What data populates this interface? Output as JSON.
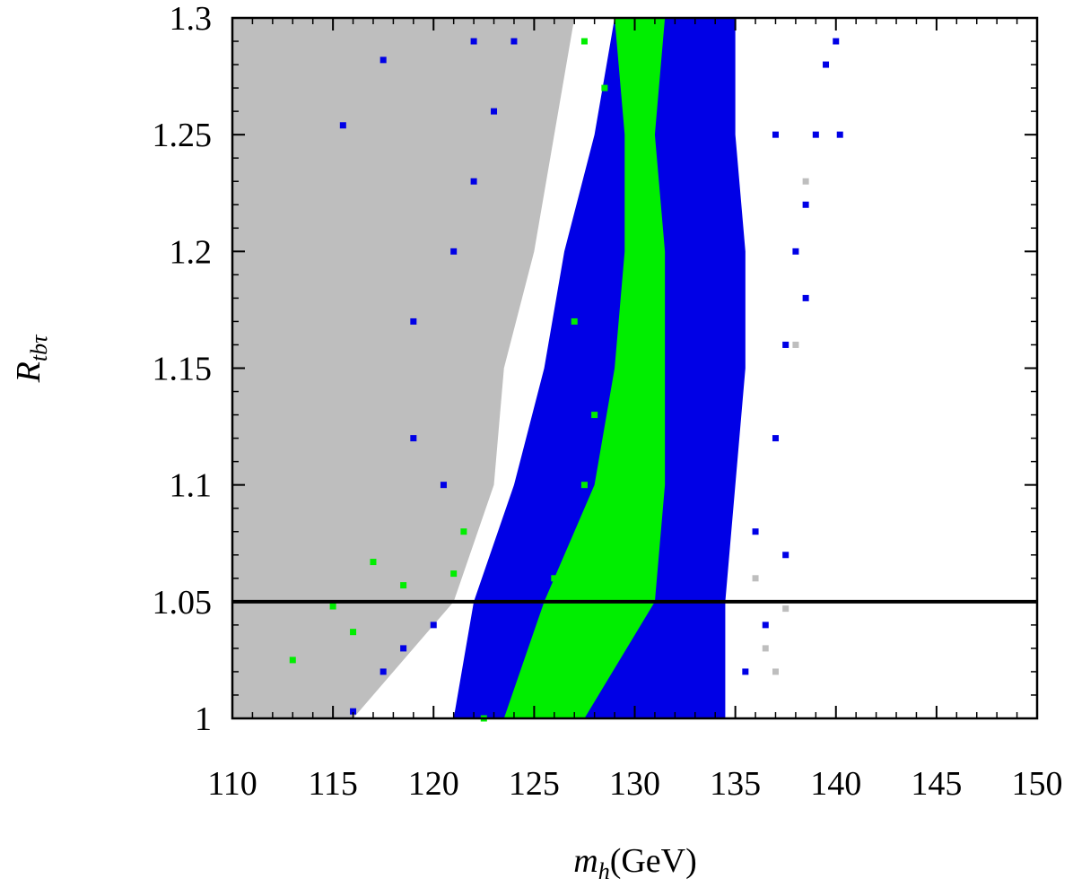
{
  "chart_data": {
    "type": "scatter",
    "x_label": {
      "main": "m",
      "sub": "h",
      "suffix": "(GeV)"
    },
    "y_label": {
      "main": "R",
      "sub": "tbτ"
    },
    "xlim": [
      110,
      150
    ],
    "ylim": [
      1,
      1.3
    ],
    "xticks": [
      110,
      115,
      120,
      125,
      130,
      135,
      140,
      145,
      150
    ],
    "yticks": [
      1,
      1.05,
      1.1,
      1.15,
      1.2,
      1.25,
      1.3
    ],
    "hline": 1.05,
    "series": [
      {
        "color": "#bebebe",
        "band": {
          "y": [
            1,
            1.05,
            1.1,
            1.15,
            1.2,
            1.25,
            1.3
          ],
          "xmin": [
            110,
            110,
            110,
            110,
            110,
            110,
            110
          ],
          "xmax": [
            116,
            121,
            123,
            123.5,
            125,
            126,
            127
          ]
        },
        "x": [
          136,
          137.5,
          138,
          137,
          136.5,
          138.5
        ],
        "y": [
          1.06,
          1.047,
          1.16,
          1.02,
          1.03,
          1.23
        ]
      },
      {
        "color": "#0000e6",
        "band": {
          "y": [
            1,
            1.05,
            1.1,
            1.15,
            1.2,
            1.25,
            1.3
          ],
          "xmin": [
            121,
            122,
            124,
            125.5,
            126.5,
            128,
            129
          ],
          "xmax": [
            134.5,
            134.5,
            135,
            135.5,
            135.5,
            135,
            135
          ]
        },
        "x": [
          135.5,
          136,
          137,
          137.5,
          138,
          138.5,
          139,
          139.5,
          140,
          140.2,
          137.5,
          115.5,
          117.5,
          119,
          120.5,
          119,
          116,
          117.5,
          118.5,
          120,
          121,
          122,
          123,
          122,
          124,
          136.5,
          138.5,
          137
        ],
        "y": [
          1.02,
          1.08,
          1.12,
          1.16,
          1.2,
          1.22,
          1.25,
          1.28,
          1.29,
          1.25,
          1.07,
          1.254,
          1.282,
          1.12,
          1.1,
          1.17,
          1.003,
          1.02,
          1.03,
          1.04,
          1.2,
          1.23,
          1.26,
          1.29,
          1.29,
          1.04,
          1.18,
          1.25
        ]
      },
      {
        "color": "#00ee00",
        "band": {
          "y": [
            1,
            1.05,
            1.1,
            1.15,
            1.2,
            1.25,
            1.3
          ],
          "xmin": [
            123.5,
            125.5,
            128,
            129,
            129.5,
            129.5,
            129
          ],
          "xmax": [
            127.5,
            131,
            131.5,
            131.5,
            131.5,
            131,
            131.5
          ]
        },
        "x": [
          113,
          115,
          116,
          117,
          118.5,
          121,
          121.5,
          122.5,
          127,
          128,
          127.5,
          126,
          128.5,
          127.5
        ],
        "y": [
          1.025,
          1.048,
          1.037,
          1.067,
          1.057,
          1.062,
          1.08,
          1.0,
          1.17,
          1.13,
          1.1,
          1.06,
          1.27,
          1.29
        ]
      }
    ]
  }
}
